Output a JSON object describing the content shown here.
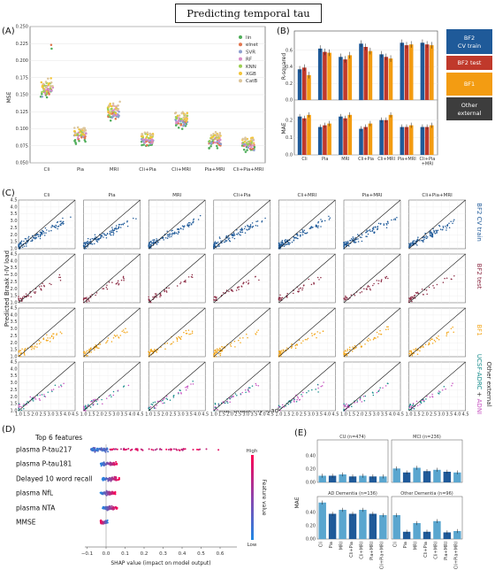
{
  "title": "Predicting temporal tau load",
  "panel_labels": {
    "a": "(A)",
    "b": "(B)",
    "c": "(C)",
    "d": "(D)",
    "e": "(E)"
  },
  "colors": {
    "lin": "#4fae5a",
    "elnet": "#e2764f",
    "svr": "#8e9fcf",
    "rf": "#d98bc7",
    "knn": "#9ccf52",
    "xgb": "#f3c53a",
    "catb": "#dcc59a",
    "bf2_cv": "#1f5a99",
    "bf2_test": "#c0392b",
    "bf1": "#f39c12",
    "other_ext": "#3d3d3d",
    "bf2_test_scatter": "#8b2a43",
    "bf1_scatter": "#f3a61a",
    "uscf_scatter": "#138a8a",
    "adni_scatter": "#c54fc0",
    "e_bar_dark": "#1f5a99",
    "e_bar_light": "#5aa6cf"
  },
  "chart_data": [
    {
      "type": "scatter",
      "panel": "A",
      "ylabel": "MSE",
      "ylim": [
        0.05,
        0.25
      ],
      "yticks": [
        "0.050",
        "0.075",
        "0.100",
        "0.125",
        "0.150",
        "0.175",
        "0.200",
        "0.225",
        "0.250"
      ],
      "categories": [
        "Cli",
        "Pia",
        "MRI",
        "Cli+Pia",
        "Cli+MRI",
        "Pia+MRI",
        "Cli+Pia+MRI"
      ],
      "legend": [
        "lin",
        "elnet",
        "SVR",
        "RF",
        "KNN",
        "XGB",
        "CatB"
      ],
      "legend_position": "top-right",
      "group_centers": [
        0.158,
        0.092,
        0.125,
        0.085,
        0.113,
        0.083,
        0.078
      ],
      "group_spreads": [
        0.02,
        0.014,
        0.018,
        0.013,
        0.014,
        0.015,
        0.015
      ]
    },
    {
      "type": "bar",
      "panel": "B",
      "categories": [
        "Cli",
        "Pia",
        "MRI",
        "Cli+Pia",
        "Cli+MRI",
        "Pia+MRI",
        "Cli+Pia\n+MRI"
      ],
      "legend": [
        "BF2 CV train",
        "BF2 test",
        "BF1",
        "Other external"
      ],
      "legend_position": "right",
      "top": {
        "ylabel": "R-squared",
        "ylim": [
          0,
          0.8
        ],
        "yticks": [
          "0.0",
          "0.2",
          "0.4",
          "0.6"
        ],
        "series": [
          {
            "name": "BF2 CV train",
            "values": [
              0.37,
              0.62,
              0.52,
              0.68,
              0.55,
              0.69,
              0.69
            ]
          },
          {
            "name": "BF2 test",
            "values": [
              0.39,
              0.58,
              0.49,
              0.64,
              0.52,
              0.66,
              0.67
            ]
          },
          {
            "name": "BF1",
            "values": [
              0.3,
              0.57,
              0.54,
              0.59,
              0.5,
              0.67,
              0.66
            ]
          }
        ]
      },
      "bottom": {
        "ylabel": "MAE",
        "ylim": [
          0,
          0.3
        ],
        "yticks": [
          "0.0",
          "0.1",
          "0.2"
        ],
        "series": [
          {
            "name": "BF2 CV train",
            "values": [
              0.22,
              0.16,
              0.22,
              0.15,
              0.2,
              0.16,
              0.16
            ]
          },
          {
            "name": "BF2 test",
            "values": [
              0.21,
              0.17,
              0.21,
              0.16,
              0.2,
              0.16,
              0.16
            ]
          },
          {
            "name": "BF1",
            "values": [
              0.23,
              0.18,
              0.23,
              0.18,
              0.23,
              0.17,
              0.17
            ]
          }
        ]
      }
    },
    {
      "type": "scatter",
      "panel": "C",
      "xlabel": "True Braak I-IV load",
      "ylabel": "Predicted Braak I-IV load",
      "xlim": [
        1.0,
        4.5
      ],
      "ylim": [
        1.0,
        4.5
      ],
      "ticks": [
        "1.0",
        "1.5",
        "2.0",
        "2.5",
        "3.0",
        "3.5",
        "4.0",
        "4.5"
      ],
      "columns": [
        "Cli",
        "Pia",
        "MRI",
        "Cli+Pia",
        "Cli+MRI",
        "Pia+MRI",
        "Cli+Pia+MRI"
      ],
      "rows": [
        "BF2 CV train",
        "BF2 test",
        "BF1",
        "UCSF-ADRC + ADNI"
      ],
      "row_label_parts": [
        "UCSF-ADRC",
        " + ",
        "ADNI"
      ],
      "row4_outer_label": "Other external"
    },
    {
      "type": "scatter",
      "panel": "D",
      "title": "Top 6 features",
      "xlabel": "SHAP value (impact on model output)",
      "xlim": [
        -0.1,
        0.6
      ],
      "xticks": [
        "−0.1",
        "0.0",
        "0.1",
        "0.2",
        "0.3",
        "0.4",
        "0.5",
        "0.6"
      ],
      "features": [
        "plasma P-tau217",
        "plasma P-tau181",
        "Delayed 10 word recall",
        "plasma NfL",
        "plasma NTA",
        "MMSE"
      ],
      "colorbar": {
        "label": "Feature value",
        "high": "High",
        "low": "Low"
      }
    },
    {
      "type": "bar",
      "panel": "E",
      "ylabel": "MAE",
      "categories": [
        "Cli",
        "Pia",
        "MRI",
        "Cli+Pia",
        "Cli+MRI",
        "Pia+MRI",
        "Cli+Pia+MRI"
      ],
      "subplots": [
        {
          "title": "CU (n=474)",
          "values": [
            0.1,
            0.1,
            0.12,
            0.09,
            0.1,
            0.09,
            0.09
          ],
          "ylim": [
            0,
            0.6
          ],
          "yticks": [
            "0.00",
            "0.20",
            "0.40"
          ]
        },
        {
          "title": "MCI (n=236)",
          "values": [
            0.21,
            0.15,
            0.22,
            0.17,
            0.19,
            0.16,
            0.15
          ],
          "ylim": [
            0,
            0.6
          ],
          "yticks": [
            "0.00",
            "0.20",
            "0.40"
          ]
        },
        {
          "title": "AD Dementia (n=136)",
          "values": [
            0.55,
            0.38,
            0.44,
            0.38,
            0.44,
            0.38,
            0.36
          ],
          "ylim": [
            0,
            0.6
          ],
          "yticks": [
            "0.00",
            "0.20",
            "0.40"
          ]
        },
        {
          "title": "Other Dementia (n=96)",
          "values": [
            0.36,
            0.11,
            0.24,
            0.11,
            0.27,
            0.1,
            0.12
          ],
          "ylim": [
            0,
            0.6
          ],
          "yticks": [
            "0.00",
            "0.20",
            "0.40"
          ]
        }
      ]
    }
  ]
}
